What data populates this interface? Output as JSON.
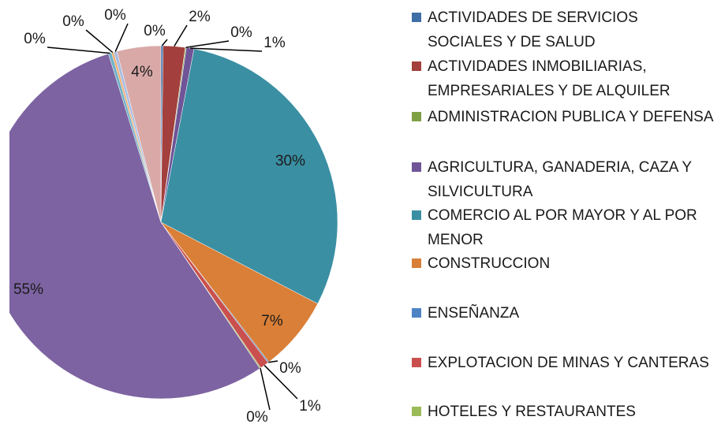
{
  "chart_data": {
    "type": "pie",
    "categories": [
      "ACTIVIDADES DE SERVICIOS SOCIALES Y DE SALUD",
      "ACTIVIDADES INMOBILIARIAS, EMPRESARIALES Y DE ALQUILER",
      "ADMINISTRACION PUBLICA Y DEFENSA",
      "AGRICULTURA, GANADERIA, CAZA Y SILVICULTURA",
      "COMERCIO AL POR MAYOR Y AL POR MENOR",
      "CONSTRUCCION",
      "ENSEÑANZA",
      "EXPLOTACION DE MINAS Y CANTERAS",
      "HOTELES Y RESTAURANTES",
      null,
      null,
      null,
      null,
      null
    ],
    "values": [
      0.2,
      2.0,
      0.1,
      0.7,
      29.6,
      6.9,
      0.1,
      0.8,
      0.1,
      54.6,
      0.3,
      0.2,
      0.3,
      4.0
    ],
    "value_labels": [
      "0%",
      "2%",
      "0%",
      "1%",
      "30%",
      "7%",
      "0%",
      "1%",
      "0%",
      "55%",
      "0%",
      "0%",
      "0%",
      "4%"
    ],
    "colors": [
      "#3e6ea6",
      "#a33f3c",
      "#7f9f45",
      "#6f5497",
      "#3a8fa3",
      "#d97f37",
      "#4f84c4",
      "#c9504e",
      "#9bbb59",
      "#7d63a2",
      "#6fb1c7",
      "#f0a868",
      "#a9bde0",
      "#d9a9a8"
    ],
    "legend": "right"
  }
}
